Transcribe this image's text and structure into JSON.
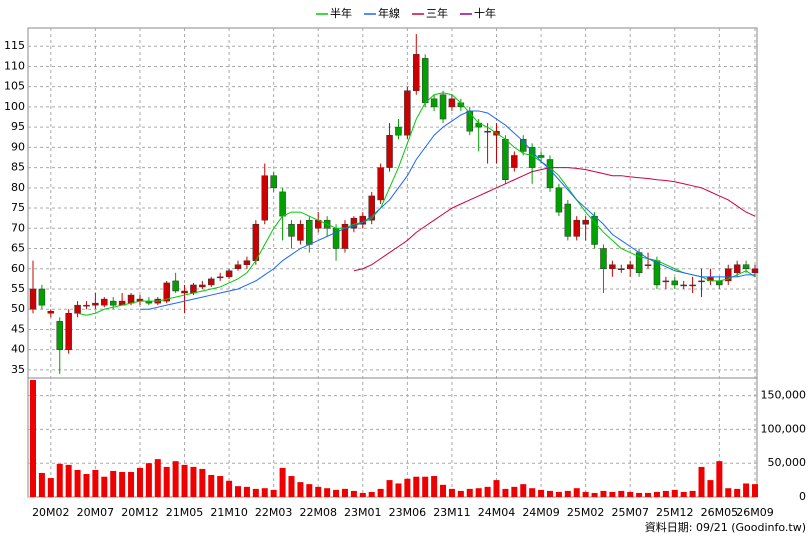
{
  "chart_data": [
    {
      "type": "candlestick",
      "legend": [
        "chart_data.0.series"
      ],
      "categories": [
        null,
        null,
        "20M02",
        null,
        null,
        null,
        null,
        "20M07",
        null,
        null,
        null,
        null,
        "20M12",
        null,
        null,
        null,
        null,
        "21M05",
        null,
        null,
        null,
        null,
        "21M10",
        null,
        null,
        null,
        null,
        "22M03",
        null,
        null,
        null,
        null,
        "22M08",
        null,
        null,
        null,
        null,
        "23M01",
        null,
        null,
        null,
        null,
        "23M06",
        null,
        null,
        null,
        null,
        "23M11",
        null,
        null,
        null,
        null,
        "24M04",
        null,
        null,
        null,
        null,
        "24M09",
        null,
        null,
        null,
        null,
        "25M02",
        null,
        null,
        null,
        null,
        "25M07",
        null,
        null,
        null,
        null,
        "25M12",
        null,
        null,
        null,
        null,
        "26M05",
        null,
        null,
        null,
        "26M09"
      ],
      "open": [
        50,
        55,
        49,
        47,
        40,
        49,
        51,
        51,
        51,
        52,
        51,
        51.5,
        52,
        52,
        51.5,
        52,
        57,
        54,
        54,
        55.5,
        56,
        58,
        58,
        60,
        61,
        62,
        72,
        83,
        79,
        71,
        67,
        72,
        70,
        72,
        70,
        65,
        70,
        71,
        72,
        77,
        85,
        95,
        93,
        104,
        112,
        102,
        103,
        100,
        101,
        99,
        96,
        94,
        93,
        92,
        85,
        92,
        90,
        88,
        87,
        80,
        76,
        68,
        71,
        73,
        65,
        60,
        60,
        60,
        64,
        61,
        62,
        57,
        57,
        56,
        56,
        57,
        57,
        57,
        57,
        59,
        61,
        59
      ],
      "high": [
        62,
        56,
        50,
        48,
        50,
        52,
        52,
        54,
        53,
        53,
        54,
        54,
        53.5,
        53,
        53,
        57,
        59,
        56,
        56.5,
        57,
        58,
        59,
        60,
        62,
        63,
        72,
        86,
        84,
        80,
        72,
        72,
        73,
        74,
        73,
        71,
        72,
        73,
        74,
        79,
        86,
        96,
        97,
        105,
        118,
        113,
        103,
        104,
        103,
        102,
        100,
        97,
        96,
        96,
        93,
        89,
        93,
        91,
        89,
        88,
        81,
        77,
        73,
        73,
        74,
        66,
        62,
        61,
        62,
        65,
        64,
        63,
        58,
        58,
        57,
        58,
        60,
        60,
        58,
        61,
        62,
        62,
        61
      ],
      "low": [
        49,
        50,
        48,
        34,
        39,
        48,
        50,
        50,
        50.5,
        50,
        51,
        51,
        51,
        51,
        51,
        51.5,
        54,
        49,
        53.5,
        55,
        55.5,
        57,
        57.5,
        59.5,
        60,
        61,
        71,
        79,
        67,
        65,
        66,
        64,
        69,
        68,
        62,
        64,
        69,
        70,
        71,
        76,
        84,
        92,
        92,
        103,
        100,
        99,
        96,
        99,
        99,
        93,
        89,
        86,
        86,
        81,
        84,
        88,
        81,
        86,
        79,
        73,
        67,
        67,
        67,
        65,
        54,
        58,
        59,
        58,
        58,
        60,
        55,
        55,
        55,
        55,
        54,
        53,
        56,
        55,
        56,
        58,
        59,
        58
      ],
      "close": [
        55,
        51,
        49.5,
        40,
        49,
        51,
        51,
        51.5,
        52.5,
        51,
        52,
        53.5,
        52.5,
        51.5,
        52.5,
        56.5,
        54.5,
        54.5,
        56,
        56,
        57.5,
        58,
        59.5,
        61,
        62,
        71,
        83,
        80,
        73,
        68,
        71,
        66,
        72,
        70,
        65,
        71,
        72.5,
        73,
        78,
        85,
        93,
        93,
        104,
        113,
        101,
        100,
        97,
        102,
        100,
        94,
        95,
        94,
        94,
        82,
        88,
        89,
        85,
        87.5,
        80,
        74,
        68,
        72,
        72,
        66,
        60,
        61,
        60,
        61,
        59,
        61,
        56,
        57,
        56,
        56,
        56,
        57,
        58,
        56,
        60,
        61,
        60,
        60
      ],
      "up_color": "#cc0000",
      "down_color": "#00a000",
      "series": [
        {
          "name": "半年",
          "color": "#00cc00",
          "values": [
            null,
            null,
            null,
            null,
            null,
            49,
            48.5,
            49,
            50,
            50.5,
            51,
            51.5,
            52,
            52,
            52,
            52.5,
            53,
            53.5,
            54,
            54.5,
            55,
            55.5,
            56.5,
            57.5,
            59,
            62,
            66,
            70,
            73,
            74,
            74,
            73,
            72,
            71,
            70,
            70,
            71,
            71.5,
            72.5,
            75,
            80,
            85,
            91,
            97,
            101,
            103,
            103.5,
            103,
            101,
            98.5,
            96,
            95,
            93.5,
            92,
            90,
            88.5,
            88,
            86.5,
            85,
            83,
            80,
            77,
            74,
            71.5,
            69,
            67,
            65,
            64,
            63,
            62.5,
            62,
            61,
            60,
            59,
            58.5,
            58,
            57,
            57,
            57.5,
            58.5,
            59.5,
            58
          ]
        },
        {
          "name": "年線",
          "color": "#1a66ff",
          "values": [
            null,
            null,
            null,
            null,
            null,
            null,
            null,
            null,
            null,
            null,
            null,
            null,
            50,
            50,
            50.5,
            51,
            51.5,
            52,
            52.5,
            53,
            53.5,
            54,
            54.5,
            55,
            56,
            57,
            58.5,
            60,
            62,
            63.5,
            65,
            66,
            67,
            68,
            69,
            70,
            70.5,
            71.5,
            73,
            75,
            77,
            80,
            83,
            87,
            90,
            93,
            95,
            96.5,
            98,
            99,
            99,
            98.5,
            97,
            95.5,
            93.5,
            91.5,
            89,
            86.5,
            84.5,
            82,
            79.5,
            77,
            75,
            73,
            71,
            68.5,
            67,
            65.5,
            64,
            62.5,
            61.5,
            60.5,
            59.5,
            59,
            58.5,
            58,
            58,
            58,
            58,
            58,
            58.5,
            58.5
          ]
        },
        {
          "name": "三年",
          "color": "#cc0044",
          "values": [
            null,
            null,
            null,
            null,
            null,
            null,
            null,
            null,
            null,
            null,
            null,
            null,
            null,
            null,
            null,
            null,
            null,
            null,
            null,
            null,
            null,
            null,
            null,
            null,
            null,
            null,
            null,
            null,
            null,
            null,
            null,
            null,
            null,
            null,
            null,
            null,
            59.5,
            60,
            61,
            62.5,
            64,
            65.5,
            67,
            69,
            70.5,
            72,
            73.5,
            75,
            76,
            77,
            78,
            79,
            80,
            81,
            82,
            83,
            84,
            84.5,
            85,
            85,
            85,
            84.8,
            84.5,
            84,
            83.5,
            83,
            83,
            82.7,
            82.5,
            82.3,
            82,
            81.8,
            81.5,
            81,
            80.5,
            80,
            79,
            78,
            77,
            75.5,
            74,
            73
          ]
        },
        {
          "name": "十年",
          "color": "#990099",
          "values": [
            null,
            null,
            null,
            null,
            null,
            null,
            null,
            null,
            null,
            null,
            null,
            null,
            null,
            null,
            null,
            null,
            null,
            null,
            null,
            null,
            null,
            null,
            null,
            null,
            null,
            null,
            null,
            null,
            null,
            null,
            null,
            null,
            null,
            null,
            null,
            null,
            null,
            null,
            null,
            null,
            null,
            null,
            null,
            null,
            null,
            null,
            null,
            null,
            null,
            null,
            null,
            null,
            null,
            null,
            null,
            null,
            null,
            null,
            null,
            null,
            null,
            null,
            null,
            null,
            null,
            null,
            null,
            null,
            null,
            null,
            null,
            null,
            null,
            null,
            null,
            null,
            null,
            null,
            null,
            null,
            null,
            null
          ]
        }
      ],
      "ylim": [
        33,
        119.5
      ],
      "yticks": [
        35,
        40,
        45,
        50,
        55,
        60,
        65,
        70,
        75,
        80,
        85,
        90,
        95,
        100,
        105,
        110,
        115
      ],
      "grid": true,
      "note": "資料日期: 09/21 (Goodinfo.tw)"
    },
    {
      "type": "bar",
      "color": "#ee0000",
      "values": [
        173000,
        35600,
        28000,
        49000,
        47500,
        40000,
        34000,
        40000,
        30000,
        38500,
        37000,
        37000,
        43000,
        50000,
        56000,
        44500,
        53000,
        47500,
        44500,
        41500,
        32600,
        31000,
        24000,
        16000,
        15000,
        12000,
        13000,
        10500,
        43000,
        31000,
        22000,
        19000,
        15000,
        13000,
        10500,
        12000,
        9000,
        6000,
        7500,
        12000,
        25000,
        20000,
        27000,
        30000,
        30000,
        31000,
        18000,
        12000,
        9000,
        12000,
        13000,
        15000,
        25000,
        12000,
        15000,
        19000,
        13000,
        10500,
        9000,
        7500,
        9000,
        13000,
        7500,
        6000,
        9000,
        7500,
        9000,
        7500,
        6000,
        6000,
        7500,
        9000,
        10500,
        7500,
        9000,
        44500,
        25000,
        53000,
        13000,
        12000,
        20000,
        19000
      ],
      "ylim": [
        0,
        176000
      ],
      "yticks": [
        0,
        {
          "value": 50000,
          "label": "50,000"
        },
        {
          "value": 100000,
          "label": "100,000"
        },
        {
          "value": 150000,
          "label": "150,000"
        }
      ],
      "grid": true
    }
  ]
}
